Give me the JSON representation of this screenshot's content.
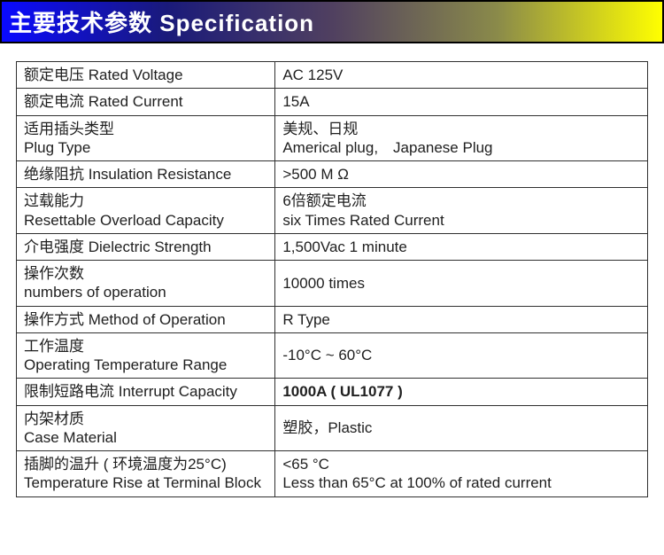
{
  "header": {
    "title_cn": "主要技术参数",
    "title_en": "Specification",
    "text_color": "#ffffff",
    "title_fontsize": 26,
    "gradient_stops": [
      "#0a0aff",
      "#1a1a7a",
      "#504060",
      "#8a8a4a",
      "#ffff00"
    ],
    "border_color": "#000000"
  },
  "table": {
    "border_color": "#303030",
    "cell_fontsize": 17,
    "text_color": "#202020",
    "label_col_width_pct": 41,
    "value_col_width_pct": 59
  },
  "rows": [
    {
      "label_cn": "额定电压",
      "label_en": "Rated Voltage",
      "label_single_line": true,
      "value": "AC 125V"
    },
    {
      "label_cn": "额定电流",
      "label_en": "Rated Current",
      "label_single_line": true,
      "value": "15A"
    },
    {
      "label_cn": "适用插头类型",
      "label_en": "Plug Type",
      "value_cn": "美规、日规",
      "value_en": "Americal plug,　Japanese Plug"
    },
    {
      "label_cn": "绝缘阻抗",
      "label_en": "Insulation Resistance",
      "label_single_line": true,
      "value": ">500 M Ω"
    },
    {
      "label_cn": "过载能力",
      "label_en": "Resettable Overload Capacity",
      "value_cn": "6倍额定电流",
      "value_en": "six Times Rated Current"
    },
    {
      "label_cn": "介电强度",
      "label_en": "Dielectric Strength",
      "label_single_line": true,
      "value": "1,500Vac 1 minute"
    },
    {
      "label_cn": "操作次数",
      "label_en": "numbers of operation",
      "value": "10000 times"
    },
    {
      "label_cn": "操作方式",
      "label_en": "Method of Operation",
      "label_single_line": true,
      "value": " R Type"
    },
    {
      "label_cn": "工作温度",
      "label_en": "Operating Temperature Range",
      "value": "-10°C ~ 60°C"
    },
    {
      "label_cn": "限制短路电流",
      "label_en": "Interrupt Capacity",
      "label_single_line": true,
      "value": "1000A ( UL1077 )",
      "value_bold": true
    },
    {
      "label_cn": "内架材质",
      "label_en": "Case Material",
      "value": "塑胶，Plastic"
    },
    {
      "label_cn": "插脚的温升 ( 环境温度为25°C)",
      "label_en": "Temperature Rise at Terminal Block",
      "value_cn": "<65 °C",
      "value_en": "Less than 65°C at 100% of rated current"
    }
  ]
}
